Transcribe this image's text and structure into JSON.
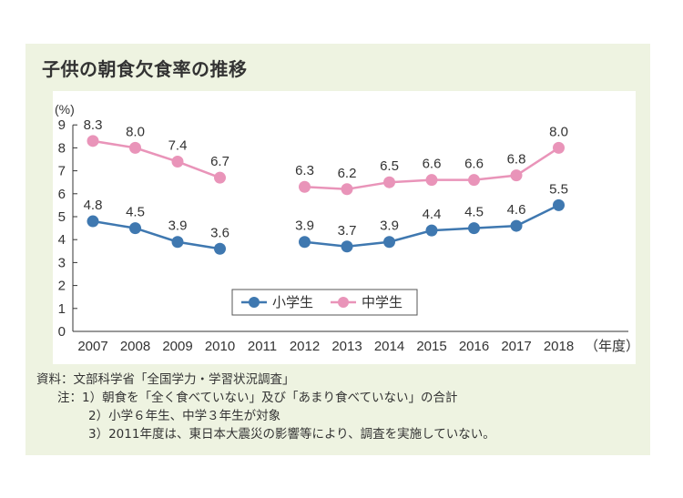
{
  "colors": {
    "elementary": "#3f78b0",
    "junior_high": "#e994b9",
    "panel_bg": "#eef3e1"
  },
  "chart_data": {
    "type": "line",
    "title": "子供の朝食欠食率の推移",
    "ylabel": "(%)",
    "xlabel_unit": "（年度）",
    "ylim": [
      0,
      9
    ],
    "yticks": [
      "0",
      "1",
      "2",
      "3",
      "4",
      "5",
      "6",
      "7",
      "8",
      "9"
    ],
    "categories": [
      "2007",
      "2008",
      "2009",
      "2010",
      "2011",
      "2012",
      "2013",
      "2014",
      "2015",
      "2016",
      "2017",
      "2018"
    ],
    "series": [
      {
        "name": "小学生",
        "values": [
          4.8,
          4.5,
          3.9,
          3.6,
          null,
          3.9,
          3.7,
          3.9,
          4.4,
          4.5,
          4.6,
          5.5
        ],
        "labels": [
          "4.8",
          "4.5",
          "3.9",
          "3.6",
          "",
          "3.9",
          "3.7",
          "3.9",
          "4.4",
          "4.5",
          "4.6",
          "5.5"
        ]
      },
      {
        "name": "中学生",
        "values": [
          8.3,
          8.0,
          7.4,
          6.7,
          null,
          6.3,
          6.2,
          6.5,
          6.6,
          6.6,
          6.8,
          8.0
        ],
        "labels": [
          "8.3",
          "8.0",
          "7.4",
          "6.7",
          "",
          "6.3",
          "6.2",
          "6.5",
          "6.6",
          "6.6",
          "6.8",
          "8.0"
        ]
      }
    ],
    "legend_position": "bottom-center",
    "grid": false
  },
  "notes": {
    "source": "資料：文部科学省「全国学力・学習状況調査」",
    "note1": "注：1）朝食を「全く食べていない」及び「あまり食べていない」の合計",
    "note2": "2）小学６年生、中学３年生が対象",
    "note3": "3）2011年度は、東日本大震災の影響等により、調査を実施していない。"
  }
}
